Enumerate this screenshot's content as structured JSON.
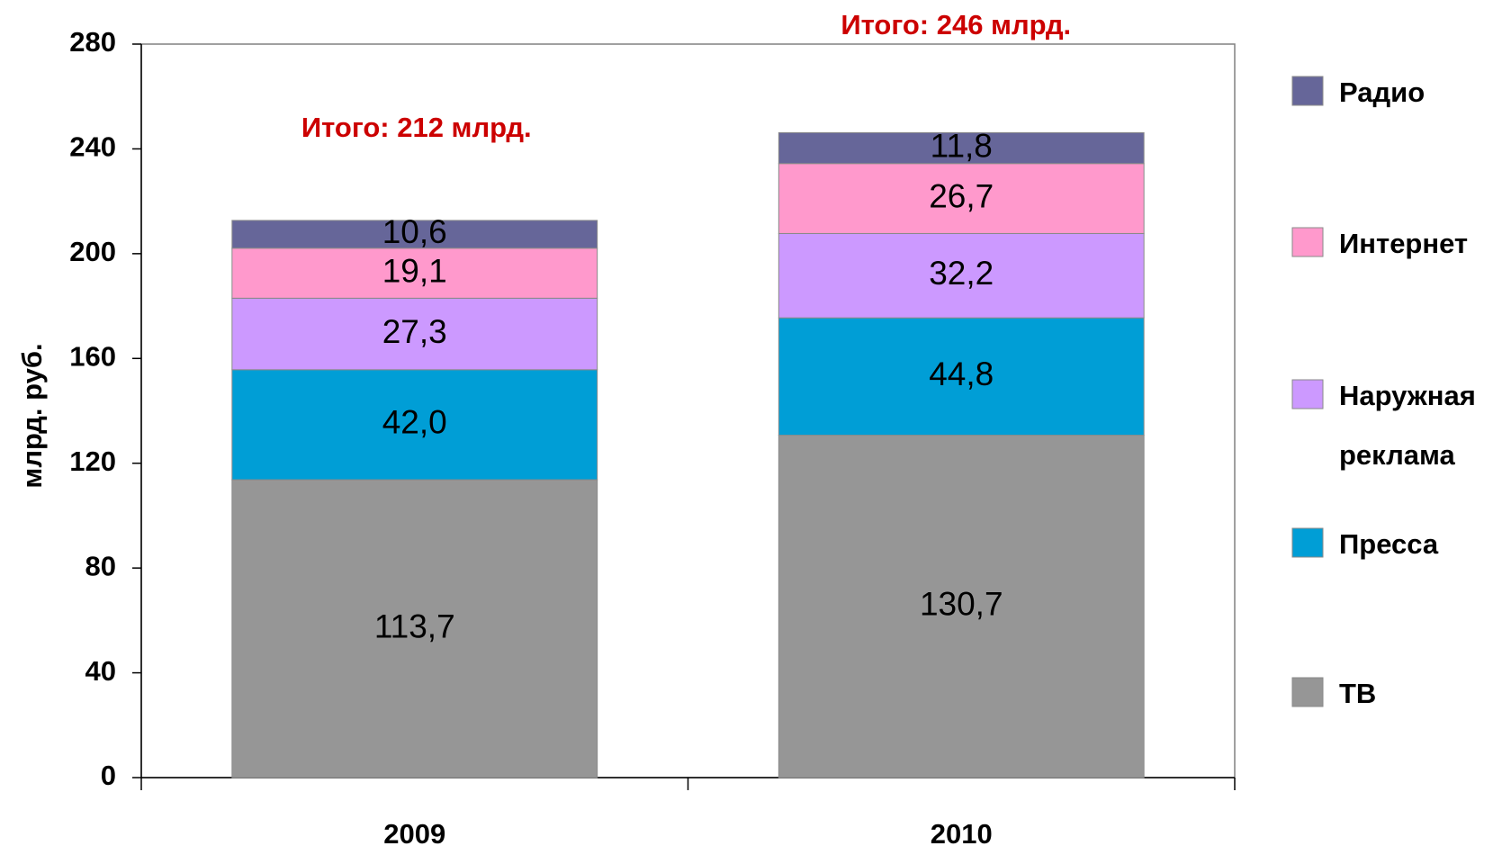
{
  "chart_data": {
    "type": "stacked_bar",
    "y_label": "млрд. руб.",
    "categories": [
      "2009",
      "2010"
    ],
    "series": [
      {
        "name": "ТВ",
        "color": "#969696",
        "values": [
          113.7,
          130.7
        ],
        "value_labels": [
          "113,7",
          "130,7"
        ]
      },
      {
        "name": "Пресса",
        "color": "#009ed6",
        "values": [
          42.0,
          44.8
        ],
        "value_labels": [
          "42,0",
          "44,8"
        ]
      },
      {
        "name": "Наружная реклама",
        "color": "#cc99ff",
        "values": [
          27.3,
          32.2
        ],
        "value_labels": [
          "27,3",
          "32,2"
        ]
      },
      {
        "name": "Интернет",
        "color": "#ff99cc",
        "values": [
          19.1,
          26.7
        ],
        "value_labels": [
          "19,1",
          "26,7"
        ]
      },
      {
        "name": "Радио",
        "color": "#666699",
        "values": [
          10.6,
          11.8
        ],
        "value_labels": [
          "10,6",
          "11,8"
        ]
      }
    ],
    "annotations": [
      "Итого: 212 млрд.",
      "Итого: 246 млрд."
    ],
    "annotation_color": "#cc0000",
    "ylim": [
      0,
      280
    ],
    "yticks": [
      0,
      40,
      80,
      120,
      160,
      200,
      240,
      280
    ],
    "legend": "right"
  }
}
